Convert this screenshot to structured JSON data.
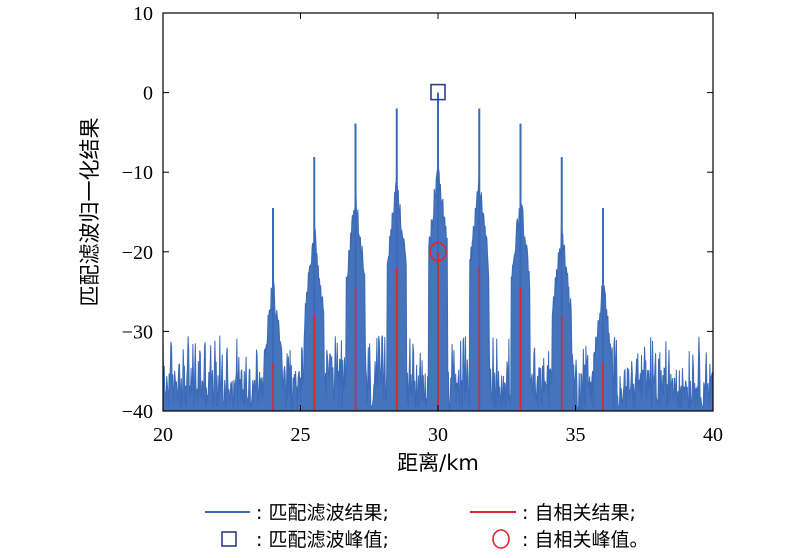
{
  "chart_data": {
    "type": "line",
    "xlabel": "距离/km",
    "ylabel": "匹配滤波归一化结果",
    "xlim": [
      20,
      40
    ],
    "ylim": [
      -40,
      10
    ],
    "xticks": [
      20,
      25,
      30,
      35,
      40
    ],
    "yticks": [
      10,
      0,
      -10,
      -20,
      -30,
      -40
    ],
    "xtick_labels": [
      "20",
      "25",
      "30",
      "35",
      "40"
    ],
    "ytick_labels": [
      "10",
      "0",
      "−10",
      "−20",
      "−30",
      "−40"
    ],
    "grid": false,
    "colors": {
      "matched": "#3b6bb8",
      "auto": "#e0252b",
      "marker_square": "#2b3f8f",
      "marker_circle": "#e0252b"
    },
    "series": [
      {
        "name": "匹配滤波结果",
        "noise_floor": [
          -40,
          -30
        ],
        "peaks": [
          {
            "x": 24.0,
            "y": -14.5
          },
          {
            "x": 25.5,
            "y": -8.1
          },
          {
            "x": 27.0,
            "y": -3.9
          },
          {
            "x": 28.5,
            "y": -2.0
          },
          {
            "x": 30.0,
            "y": 0.0
          },
          {
            "x": 31.5,
            "y": -2.0
          },
          {
            "x": 33.0,
            "y": -3.9
          },
          {
            "x": 34.5,
            "y": -8.1
          },
          {
            "x": 36.0,
            "y": -14.5
          }
        ]
      },
      {
        "name": "自相关结果",
        "peaks": [
          {
            "x": 24.0,
            "y": -34.0
          },
          {
            "x": 25.5,
            "y": -28.0
          },
          {
            "x": 27.0,
            "y": -24.5
          },
          {
            "x": 28.5,
            "y": -22.0
          },
          {
            "x": 30.0,
            "y": -20.0
          },
          {
            "x": 31.5,
            "y": -22.0
          },
          {
            "x": 33.0,
            "y": -24.5
          },
          {
            "x": 34.5,
            "y": -28.0
          },
          {
            "x": 36.0,
            "y": -34.0
          }
        ]
      }
    ],
    "markers": [
      {
        "name": "匹配滤波峰值",
        "shape": "square",
        "x": 30.0,
        "y": 0.0
      },
      {
        "name": "自相关峰值",
        "shape": "circle",
        "x": 30.0,
        "y": -20.0
      }
    ],
    "legend": {
      "placement": "bottom",
      "entries": [
        {
          "symbol": "line-blue",
          "label": ": 匹配滤波结果;"
        },
        {
          "symbol": "line-red",
          "label": ": 自相关结果;"
        },
        {
          "symbol": "square-blue",
          "label": ": 匹配滤波峰值;"
        },
        {
          "symbol": "circle-red",
          "label": ": 自相关峰值。"
        }
      ]
    }
  }
}
